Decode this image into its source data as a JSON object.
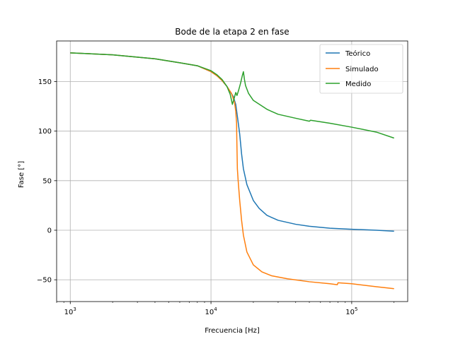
{
  "chart_data": {
    "type": "line",
    "title": "Bode de la etapa 2 en fase",
    "xlabel": "Frecuencia [Hz]",
    "ylabel": "Fase [°]",
    "xscale": "log",
    "xlim": [
      800,
      250000
    ],
    "ylim": [
      -72,
      191
    ],
    "grid": true,
    "legend_position": "top-right",
    "x_ticks": [
      {
        "value": 1000,
        "base": "10",
        "exp": "3"
      },
      {
        "value": 10000,
        "base": "10",
        "exp": "4"
      },
      {
        "value": 100000,
        "base": "10",
        "exp": "5"
      }
    ],
    "y_ticks": [
      {
        "value": -50,
        "label": "−50"
      },
      {
        "value": 0,
        "label": "0"
      },
      {
        "value": 50,
        "label": "50"
      },
      {
        "value": 100,
        "label": "100"
      },
      {
        "value": 150,
        "label": "150"
      }
    ],
    "series": [
      {
        "name": "Teórico",
        "color": "#1f77b4",
        "x": [
          1000,
          2000,
          4000,
          6000,
          8000,
          10000,
          11000,
          12000,
          13000,
          13800,
          14400,
          15000,
          15500,
          16000,
          16500,
          17000,
          18000,
          20000,
          22000,
          25000,
          30000,
          40000,
          50000,
          70000,
          100000,
          150000,
          200000
        ],
        "y": [
          179,
          177,
          173,
          169,
          166,
          160,
          156,
          151,
          145,
          139,
          135,
          127,
          112,
          97,
          77,
          62,
          46,
          30,
          22,
          15,
          10,
          6,
          4,
          2,
          1,
          0,
          -1
        ]
      },
      {
        "name": "Simulado",
        "color": "#ff7f0e",
        "x": [
          1000,
          2000,
          4000,
          6000,
          8000,
          10000,
          11000,
          12000,
          13000,
          14000,
          14700,
          15000,
          15200,
          15250,
          15400,
          15600,
          16000,
          16500,
          17000,
          18000,
          20000,
          23000,
          27000,
          35000,
          50000,
          70000,
          79000,
          80000,
          100000,
          150000,
          200000
        ],
        "y": [
          179,
          177,
          173,
          169,
          166,
          160,
          156,
          151,
          145,
          138,
          129,
          120,
          108,
          94,
          62,
          50,
          30,
          10,
          -5,
          -22,
          -35,
          -42,
          -46,
          -49,
          -52,
          -54,
          -55,
          -53,
          -54,
          -57,
          -59
        ]
      },
      {
        "name": "Medido",
        "color": "#2ca02c",
        "x": [
          1000,
          2000,
          4000,
          6000,
          8000,
          10000,
          11000,
          12000,
          13000,
          13700,
          14200,
          14600,
          15000,
          15300,
          15700,
          16200,
          16700,
          17000,
          17300,
          17600,
          18500,
          20000,
          25000,
          30000,
          40000,
          50000,
          51000,
          70000,
          100000,
          150000,
          200000
        ],
        "y": [
          179,
          177,
          173,
          169,
          166,
          161,
          157,
          152,
          145,
          137,
          127,
          133,
          139,
          136,
          141,
          148,
          156,
          160,
          152,
          146,
          138,
          131,
          122,
          117,
          113,
          110,
          111,
          108,
          104,
          99,
          93
        ]
      }
    ]
  }
}
